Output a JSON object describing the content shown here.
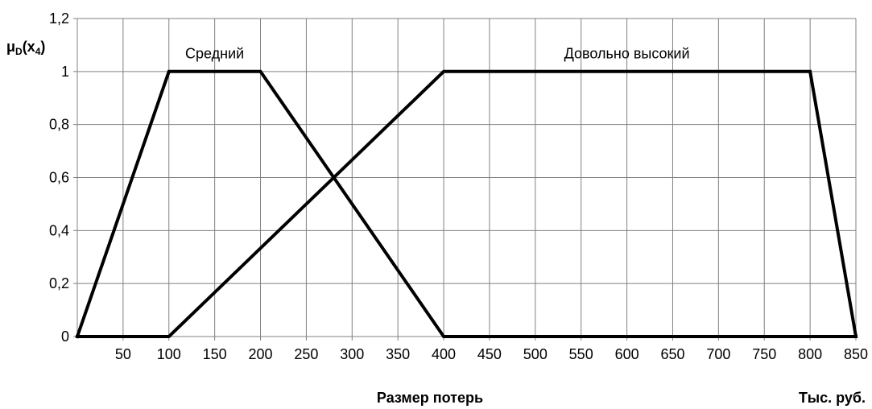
{
  "chart_data": {
    "type": "line",
    "title": "",
    "xlabel": "Размер потерь",
    "ylabel": "μD(x4)",
    "ylabel_parts": {
      "main": "μ",
      "sub1": "D",
      "open": "(x",
      "sub2": "4",
      "close": ")"
    },
    "units_label": "Тыс. руб.",
    "xlim": [
      0,
      850
    ],
    "ylim": [
      0,
      1.2
    ],
    "x_ticks": [
      50,
      100,
      150,
      200,
      250,
      300,
      350,
      400,
      450,
      500,
      550,
      600,
      650,
      700,
      750,
      800,
      850
    ],
    "y_ticks": [
      0,
      0.2,
      0.4,
      0.6,
      0.8,
      1,
      1.2
    ],
    "y_tick_labels": [
      "0",
      "0,2",
      "0,4",
      "0,6",
      "0,8",
      "1",
      "1,2"
    ],
    "grid": true,
    "series": [
      {
        "name": "Средний",
        "points": [
          [
            0,
            0
          ],
          [
            100,
            1
          ],
          [
            200,
            1
          ],
          [
            400,
            0
          ],
          [
            850,
            0
          ]
        ]
      },
      {
        "name": "Довольно высокий",
        "points": [
          [
            0,
            0
          ],
          [
            100,
            0
          ],
          [
            400,
            1
          ],
          [
            800,
            1
          ],
          [
            850,
            0
          ]
        ]
      }
    ],
    "series_label_positions": [
      {
        "series": "Средний",
        "x": 150,
        "y": 1.05
      },
      {
        "series": "Довольно высокий",
        "x": 600,
        "y": 1.05
      }
    ],
    "colors": {
      "series": "#000000",
      "grid": "#808080",
      "background": "#ffffff"
    }
  }
}
